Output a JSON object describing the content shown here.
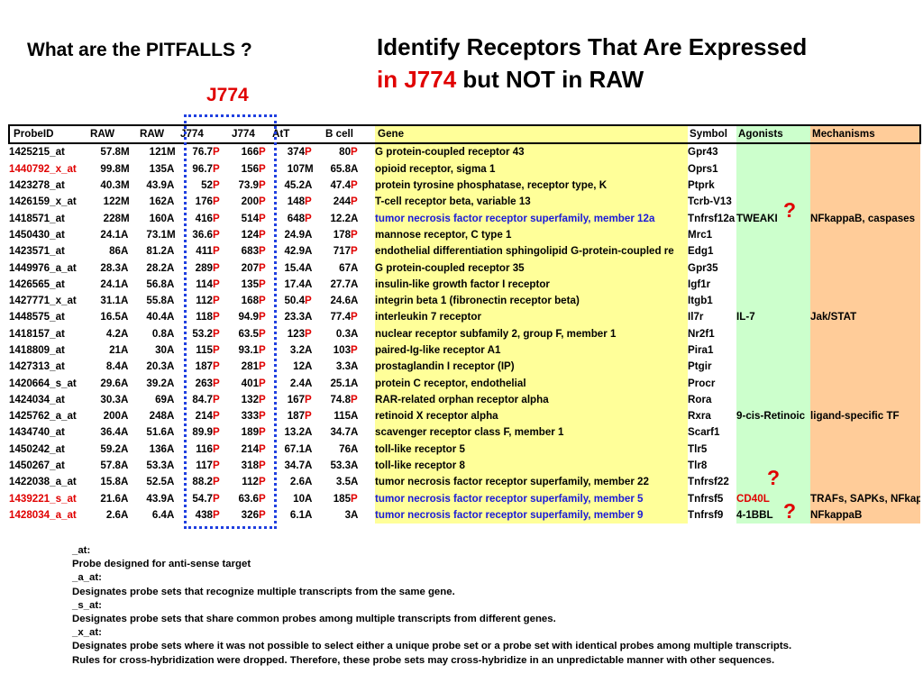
{
  "heading_left": "What are the PITFALLS ?",
  "title": {
    "line1": "Identify Receptors That Are Expressed",
    "line2_red": "in J774",
    "line2_rest": " but NOT in RAW"
  },
  "j774_label": "J774",
  "question_mark": "?",
  "table": {
    "headers": [
      "ProbeID",
      "RAW",
      "RAW",
      "J774",
      "J774",
      "AtT",
      "B cell",
      "Gene",
      "Symbol",
      "Agonists",
      "Mechanisms"
    ],
    "rows": [
      {
        "probe": "1425215_at",
        "probe_color": "black",
        "raw1": "57.8",
        "raw1c": "M",
        "raw2": "121",
        "raw2c": "M",
        "j1": "76.7",
        "j1c": "P",
        "j2": "166",
        "j2c": "P",
        "att": "374",
        "attc": "P",
        "b": "80",
        "bc": "P",
        "gene": "G protein-coupled receptor 43",
        "gene_color": "black",
        "symbol": "Gpr43",
        "agonist": "",
        "agonist_color": "black",
        "mechanism": ""
      },
      {
        "probe": "1440792_x_at",
        "probe_color": "red",
        "raw1": "99.8",
        "raw1c": "M",
        "raw2": "135",
        "raw2c": "A",
        "j1": "96.7",
        "j1c": "P",
        "j2": "156",
        "j2c": "P",
        "att": "107",
        "attc": "M",
        "b": "65.8",
        "bc": "A",
        "gene": "opioid receptor, sigma 1",
        "gene_color": "black",
        "symbol": "Oprs1",
        "agonist": "",
        "agonist_color": "black",
        "mechanism": ""
      },
      {
        "probe": "1423278_at",
        "probe_color": "black",
        "raw1": "40.3",
        "raw1c": "M",
        "raw2": "43.9",
        "raw2c": "A",
        "j1": "52",
        "j1c": "P",
        "j2": "73.9",
        "j2c": "P",
        "att": "45.2",
        "attc": "A",
        "b": "47.4",
        "bc": "P",
        "gene": "protein tyrosine phosphatase, receptor type, K",
        "gene_color": "black",
        "symbol": "Ptprk",
        "agonist": "",
        "agonist_color": "black",
        "mechanism": ""
      },
      {
        "probe": "1426159_x_at",
        "probe_color": "black",
        "raw1": "122",
        "raw1c": "M",
        "raw2": "162",
        "raw2c": "A",
        "j1": "176",
        "j1c": "P",
        "j2": "200",
        "j2c": "P",
        "att": "148",
        "attc": "P",
        "b": "244",
        "bc": "P",
        "gene": "T-cell receptor beta, variable 13",
        "gene_color": "black",
        "symbol": "Tcrb-V13",
        "agonist": "",
        "agonist_color": "black",
        "mechanism": ""
      },
      {
        "probe": "1418571_at",
        "probe_color": "black",
        "raw1": "228",
        "raw1c": "M",
        "raw2": "160",
        "raw2c": "A",
        "j1": "416",
        "j1c": "P",
        "j2": "514",
        "j2c": "P",
        "att": "648",
        "attc": "P",
        "b": "12.2",
        "bc": "A",
        "gene": "tumor necrosis factor receptor superfamily, member 12a",
        "gene_color": "blue",
        "symbol": "Tnfrsf12a",
        "agonist": "TWEAKI",
        "agonist_color": "black",
        "mechanism": "NFkappaB, caspases"
      },
      {
        "probe": "1450430_at",
        "probe_color": "black",
        "raw1": "24.1",
        "raw1c": "A",
        "raw2": "73.1",
        "raw2c": "M",
        "j1": "36.6",
        "j1c": "P",
        "j2": "124",
        "j2c": "P",
        "att": "24.9",
        "attc": "A",
        "b": "178",
        "bc": "P",
        "gene": "mannose receptor, C type 1",
        "gene_color": "black",
        "symbol": "Mrc1",
        "agonist": "",
        "agonist_color": "black",
        "mechanism": ""
      },
      {
        "probe": "1423571_at",
        "probe_color": "black",
        "raw1": "86",
        "raw1c": "A",
        "raw2": "81.2",
        "raw2c": "A",
        "j1": "411",
        "j1c": "P",
        "j2": "683",
        "j2c": "P",
        "att": "42.9",
        "attc": "A",
        "b": "717",
        "bc": "P",
        "gene": "endothelial differentiation sphingolipid G-protein-coupled re",
        "gene_color": "black",
        "symbol": "Edg1",
        "agonist": "",
        "agonist_color": "black",
        "mechanism": ""
      },
      {
        "probe": "1449976_a_at",
        "probe_color": "black",
        "raw1": "28.3",
        "raw1c": "A",
        "raw2": "28.2",
        "raw2c": "A",
        "j1": "289",
        "j1c": "P",
        "j2": "207",
        "j2c": "P",
        "att": "15.4",
        "attc": "A",
        "b": "67",
        "bc": "A",
        "gene": "G protein-coupled receptor 35",
        "gene_color": "black",
        "symbol": "Gpr35",
        "agonist": "",
        "agonist_color": "black",
        "mechanism": ""
      },
      {
        "probe": "1426565_at",
        "probe_color": "black",
        "raw1": "24.1",
        "raw1c": "A",
        "raw2": "56.8",
        "raw2c": "A",
        "j1": "114",
        "j1c": "P",
        "j2": "135",
        "j2c": "P",
        "att": "17.4",
        "attc": "A",
        "b": "27.7",
        "bc": "A",
        "gene": "insulin-like growth factor I receptor",
        "gene_color": "black",
        "symbol": "Igf1r",
        "agonist": "",
        "agonist_color": "black",
        "mechanism": ""
      },
      {
        "probe": "1427771_x_at",
        "probe_color": "black",
        "raw1": "31.1",
        "raw1c": "A",
        "raw2": "55.8",
        "raw2c": "A",
        "j1": "112",
        "j1c": "P",
        "j2": "168",
        "j2c": "P",
        "att": "50.4",
        "attc": "P",
        "b": "24.6",
        "bc": "A",
        "gene": "integrin beta 1 (fibronectin receptor beta)",
        "gene_color": "black",
        "symbol": "Itgb1",
        "agonist": "",
        "agonist_color": "black",
        "mechanism": ""
      },
      {
        "probe": "1448575_at",
        "probe_color": "black",
        "raw1": "16.5",
        "raw1c": "A",
        "raw2": "40.4",
        "raw2c": "A",
        "j1": "118",
        "j1c": "P",
        "j2": "94.9",
        "j2c": "P",
        "att": "23.3",
        "attc": "A",
        "b": "77.4",
        "bc": "P",
        "gene": "interleukin 7 receptor",
        "gene_color": "black",
        "symbol": "Il7r",
        "agonist": "IL-7",
        "agonist_color": "black",
        "mechanism": "Jak/STAT"
      },
      {
        "probe": "1418157_at",
        "probe_color": "black",
        "raw1": "4.2",
        "raw1c": "A",
        "raw2": "0.8",
        "raw2c": "A",
        "j1": "53.2",
        "j1c": "P",
        "j2": "63.5",
        "j2c": "P",
        "att": "123",
        "attc": "P",
        "b": "0.3",
        "bc": "A",
        "gene": "nuclear receptor subfamily 2, group F, member 1",
        "gene_color": "black",
        "symbol": "Nr2f1",
        "agonist": "",
        "agonist_color": "black",
        "mechanism": ""
      },
      {
        "probe": "1418809_at",
        "probe_color": "black",
        "raw1": "21",
        "raw1c": "A",
        "raw2": "30",
        "raw2c": "A",
        "j1": "115",
        "j1c": "P",
        "j2": "93.1",
        "j2c": "P",
        "att": "3.2",
        "attc": "A",
        "b": "103",
        "bc": "P",
        "gene": "paired-Ig-like receptor A1",
        "gene_color": "black",
        "symbol": "Pira1",
        "agonist": "",
        "agonist_color": "black",
        "mechanism": ""
      },
      {
        "probe": "1427313_at",
        "probe_color": "black",
        "raw1": "8.4",
        "raw1c": "A",
        "raw2": "20.3",
        "raw2c": "A",
        "j1": "187",
        "j1c": "P",
        "j2": "281",
        "j2c": "P",
        "att": "12",
        "attc": "A",
        "b": "3.3",
        "bc": "A",
        "gene": "prostaglandin I receptor (IP)",
        "gene_color": "black",
        "symbol": "Ptgir",
        "agonist": "",
        "agonist_color": "black",
        "mechanism": ""
      },
      {
        "probe": "1420664_s_at",
        "probe_color": "black",
        "raw1": "29.6",
        "raw1c": "A",
        "raw2": "39.2",
        "raw2c": "A",
        "j1": "263",
        "j1c": "P",
        "j2": "401",
        "j2c": "P",
        "att": "2.4",
        "attc": "A",
        "b": "25.1",
        "bc": "A",
        "gene": "protein C receptor, endothelial",
        "gene_color": "black",
        "symbol": "Procr",
        "agonist": "",
        "agonist_color": "black",
        "mechanism": ""
      },
      {
        "probe": "1424034_at",
        "probe_color": "black",
        "raw1": "30.3",
        "raw1c": "A",
        "raw2": "69",
        "raw2c": "A",
        "j1": "84.7",
        "j1c": "P",
        "j2": "132",
        "j2c": "P",
        "att": "167",
        "attc": "P",
        "b": "74.8",
        "bc": "P",
        "gene": "RAR-related orphan receptor alpha",
        "gene_color": "black",
        "symbol": "Rora",
        "agonist": "",
        "agonist_color": "black",
        "mechanism": ""
      },
      {
        "probe": "1425762_a_at",
        "probe_color": "black",
        "raw1": "200",
        "raw1c": "A",
        "raw2": "248",
        "raw2c": "A",
        "j1": "214",
        "j1c": "P",
        "j2": "333",
        "j2c": "P",
        "att": "187",
        "attc": "P",
        "b": "115",
        "bc": "A",
        "gene": "retinoid X receptor alpha",
        "gene_color": "black",
        "symbol": "Rxra",
        "agonist": "9-cis-Retinoic",
        "agonist_color": "black",
        "mechanism": "ligand-specific TF"
      },
      {
        "probe": "1434740_at",
        "probe_color": "black",
        "raw1": "36.4",
        "raw1c": "A",
        "raw2": "51.6",
        "raw2c": "A",
        "j1": "89.9",
        "j1c": "P",
        "j2": "189",
        "j2c": "P",
        "att": "13.2",
        "attc": "A",
        "b": "34.7",
        "bc": "A",
        "gene": "scavenger receptor class F, member 1",
        "gene_color": "black",
        "symbol": "Scarf1",
        "agonist": "",
        "agonist_color": "black",
        "mechanism": ""
      },
      {
        "probe": "1450242_at",
        "probe_color": "black",
        "raw1": "59.2",
        "raw1c": "A",
        "raw2": "136",
        "raw2c": "A",
        "j1": "116",
        "j1c": "P",
        "j2": "214",
        "j2c": "P",
        "att": "67.1",
        "attc": "A",
        "b": "76",
        "bc": "A",
        "gene": "toll-like receptor 5",
        "gene_color": "black",
        "symbol": "Tlr5",
        "agonist": "",
        "agonist_color": "black",
        "mechanism": ""
      },
      {
        "probe": "1450267_at",
        "probe_color": "black",
        "raw1": "57.8",
        "raw1c": "A",
        "raw2": "53.3",
        "raw2c": "A",
        "j1": "117",
        "j1c": "P",
        "j2": "318",
        "j2c": "P",
        "att": "34.7",
        "attc": "A",
        "b": "53.3",
        "bc": "A",
        "gene": "toll-like receptor 8",
        "gene_color": "black",
        "symbol": "Tlr8",
        "agonist": "",
        "agonist_color": "black",
        "mechanism": ""
      },
      {
        "probe": "1422038_a_at",
        "probe_color": "black",
        "raw1": "15.8",
        "raw1c": "A",
        "raw2": "52.5",
        "raw2c": "A",
        "j1": "88.2",
        "j1c": "P",
        "j2": "112",
        "j2c": "P",
        "att": "2.6",
        "attc": "A",
        "b": "3.5",
        "bc": "A",
        "gene": "tumor necrosis factor receptor superfamily, member 22",
        "gene_color": "black",
        "symbol": "Tnfrsf22",
        "agonist": "",
        "agonist_color": "black",
        "mechanism": ""
      },
      {
        "probe": "1439221_s_at",
        "probe_color": "red",
        "raw1": "21.6",
        "raw1c": "A",
        "raw2": "43.9",
        "raw2c": "A",
        "j1": "54.7",
        "j1c": "P",
        "j2": "63.6",
        "j2c": "P",
        "att": "10",
        "attc": "A",
        "b": "185",
        "bc": "P",
        "gene": "tumor necrosis factor receptor superfamily, member 5",
        "gene_color": "blue",
        "symbol": "Tnfrsf5",
        "agonist": "CD40L",
        "agonist_color": "red",
        "mechanism": "TRAFs, SAPKs, NFkappaB"
      },
      {
        "probe": "1428034_a_at",
        "probe_color": "red",
        "raw1": "2.6",
        "raw1c": "A",
        "raw2": "6.4",
        "raw2c": "A",
        "j1": "438",
        "j1c": "P",
        "j2": "326",
        "j2c": "P",
        "att": "6.1",
        "attc": "A",
        "b": "3",
        "bc": "A",
        "gene": "tumor necrosis factor receptor superfamily, member 9",
        "gene_color": "blue",
        "symbol": "Tnfrsf9",
        "agonist": "4-1BBL",
        "agonist_color": "black",
        "mechanism": "NFkappaB"
      }
    ]
  },
  "notes": [
    "_at:",
    "Probe designed for anti-sense target",
    "_a_at:",
    "Designates probe sets that recognize multiple transcripts from the same gene.",
    "_s_at:",
    "Designates probe sets that share common probes among multiple transcripts from different genes.",
    "_x_at:",
    "Designates probe sets where it was not possible to select either a unique probe set or a probe set with identical probes among multiple transcripts.",
    "Rules for cross-hybridization were dropped. Therefore, these probe sets may cross-hybridize in an unpredictable manner with other sequences."
  ],
  "colors": {
    "red": "#e00000",
    "blue": "#1a1ad8",
    "gene_bg": "#ffff99",
    "agonist_bg": "#ccffcc",
    "mechanism_bg": "#ffcc99",
    "dotted_box": "#1f3fe0"
  }
}
